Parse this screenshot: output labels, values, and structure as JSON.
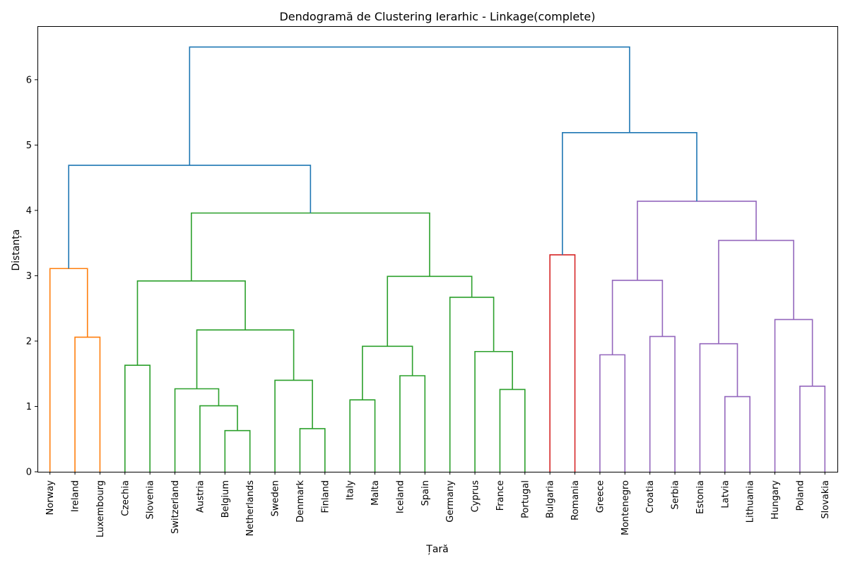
{
  "chart_data": {
    "type": "dendrogram",
    "title": "Dendogramă de Clustering Ierarhic - Linkage(complete)",
    "xlabel": "Țară",
    "ylabel": "Distanța",
    "ylim": [
      0,
      6.82
    ],
    "y_ticks": [
      0,
      1,
      2,
      3,
      4,
      5,
      6
    ],
    "grid": false,
    "colors": {
      "above_threshold": "#1f77b4",
      "c1": "#ff7f0e",
      "c2": "#2ca02c",
      "c3": "#d62728",
      "c4": "#9467bd"
    },
    "leaves": [
      "Norway",
      "Ireland",
      "Luxembourg",
      "Czechia",
      "Slovenia",
      "Switzerland",
      "Austria",
      "Belgium",
      "Netherlands",
      "Sweden",
      "Denmark",
      "Finland",
      "Italy",
      "Malta",
      "Iceland",
      "Spain",
      "Germany",
      "Cyprus",
      "France",
      "Portugal",
      "Bulgaria",
      "Romania",
      "Greece",
      "Montenegro",
      "Croatia",
      "Serbia",
      "Estonia",
      "Latvia",
      "Lithuania",
      "Hungary",
      "Poland",
      "Slovakia"
    ],
    "merges": [
      {
        "a": "Ireland",
        "b": "Luxembourg",
        "height": 2.06,
        "color": "c1"
      },
      {
        "a": "Norway",
        "b": "M0",
        "height": 3.11,
        "color": "c1"
      },
      {
        "a": "Czechia",
        "b": "Slovenia",
        "height": 1.63,
        "color": "c2"
      },
      {
        "a": "Belgium",
        "b": "Netherlands",
        "height": 0.63,
        "color": "c2"
      },
      {
        "a": "Austria",
        "b": "M3",
        "height": 1.01,
        "color": "c2"
      },
      {
        "a": "Switzerland",
        "b": "M4",
        "height": 1.27,
        "color": "c2"
      },
      {
        "a": "Denmark",
        "b": "Finland",
        "height": 0.66,
        "color": "c2"
      },
      {
        "a": "Sweden",
        "b": "M6",
        "height": 1.4,
        "color": "c2"
      },
      {
        "a": "M5",
        "b": "M7",
        "height": 2.17,
        "color": "c2"
      },
      {
        "a": "M2",
        "b": "M8",
        "height": 2.92,
        "color": "c2"
      },
      {
        "a": "Italy",
        "b": "Malta",
        "height": 1.1,
        "color": "c2"
      },
      {
        "a": "Iceland",
        "b": "Spain",
        "height": 1.47,
        "color": "c2"
      },
      {
        "a": "M10",
        "b": "M11",
        "height": 1.92,
        "color": "c2"
      },
      {
        "a": "France",
        "b": "Portugal",
        "height": 1.26,
        "color": "c2"
      },
      {
        "a": "Cyprus",
        "b": "M13",
        "height": 1.84,
        "color": "c2"
      },
      {
        "a": "Germany",
        "b": "M14",
        "height": 2.67,
        "color": "c2"
      },
      {
        "a": "M12",
        "b": "M15",
        "height": 2.99,
        "color": "c2"
      },
      {
        "a": "M9",
        "b": "M16",
        "height": 3.96,
        "color": "c2"
      },
      {
        "a": "M1",
        "b": "M17",
        "height": 4.69,
        "color": "above_threshold"
      },
      {
        "a": "Bulgaria",
        "b": "Romania",
        "height": 3.32,
        "color": "c3"
      },
      {
        "a": "Greece",
        "b": "Montenegro",
        "height": 1.79,
        "color": "c4"
      },
      {
        "a": "Croatia",
        "b": "Serbia",
        "height": 2.07,
        "color": "c4"
      },
      {
        "a": "M20",
        "b": "M21",
        "height": 2.93,
        "color": "c4"
      },
      {
        "a": "Latvia",
        "b": "Lithuania",
        "height": 1.15,
        "color": "c4"
      },
      {
        "a": "Estonia",
        "b": "M23",
        "height": 1.96,
        "color": "c4"
      },
      {
        "a": "Poland",
        "b": "Slovakia",
        "height": 1.31,
        "color": "c4"
      },
      {
        "a": "Hungary",
        "b": "M25",
        "height": 2.33,
        "color": "c4"
      },
      {
        "a": "M24",
        "b": "M26",
        "height": 3.54,
        "color": "c4"
      },
      {
        "a": "M22",
        "b": "M27",
        "height": 4.14,
        "color": "c4"
      },
      {
        "a": "M19",
        "b": "M28",
        "height": 5.19,
        "color": "above_threshold"
      },
      {
        "a": "M18",
        "b": "M29",
        "height": 6.5,
        "color": "above_threshold"
      }
    ]
  }
}
